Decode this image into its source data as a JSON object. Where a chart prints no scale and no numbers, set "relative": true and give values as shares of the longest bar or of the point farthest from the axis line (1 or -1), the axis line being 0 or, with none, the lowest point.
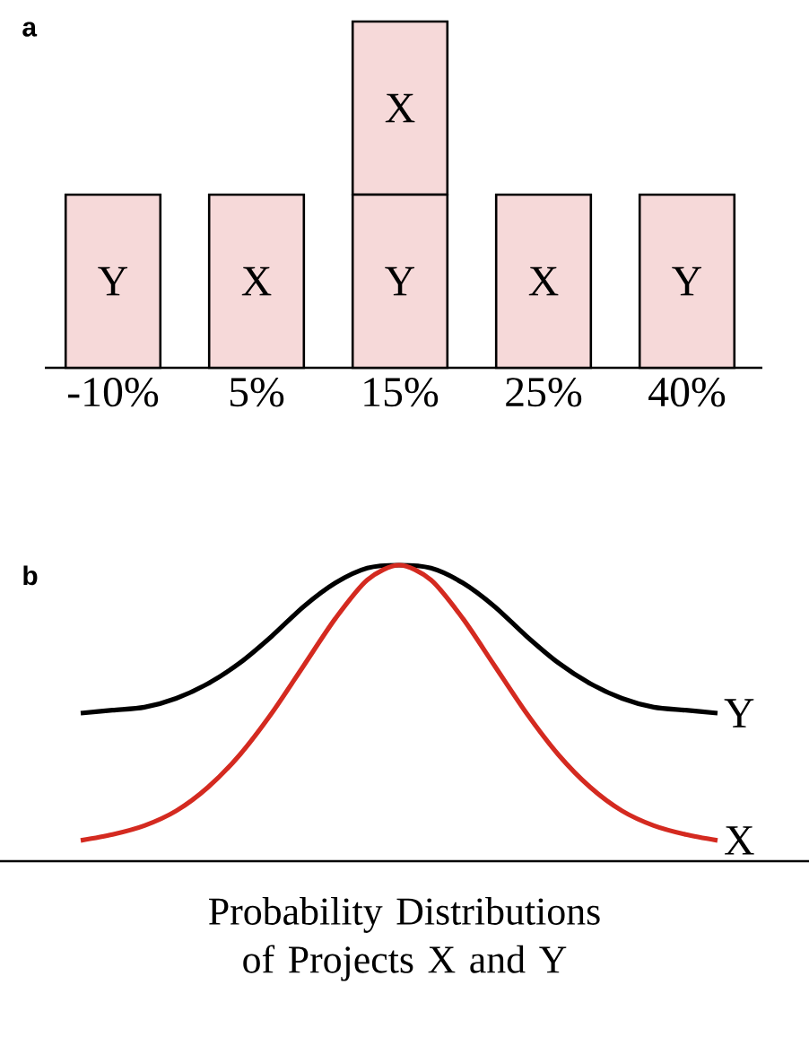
{
  "chart_data": [
    {
      "type": "bar",
      "title": "a",
      "categories": [
        "-10%",
        "5%",
        "15%",
        "25%",
        "40%"
      ],
      "stacked": true,
      "relative": true,
      "series": [
        {
          "name": "Y",
          "color": "#f6d9d9",
          "values": [
            0.5,
            0,
            0.5,
            0,
            0.5
          ]
        },
        {
          "name": "X",
          "color": "#f6d9d9",
          "values": [
            0,
            0.5,
            0.5,
            0.5,
            0
          ]
        }
      ]
    },
    {
      "type": "line",
      "title": "b",
      "relative": true,
      "categories": [
        null,
        null,
        null,
        null,
        null,
        null,
        null,
        null,
        null,
        null,
        null,
        null,
        null,
        null,
        null,
        null,
        null,
        null,
        null,
        null,
        null
      ],
      "annotations": [
        "Probability Distributions of Projects X and Y"
      ],
      "series": [
        {
          "name": "Y",
          "color": "#000000",
          "values": [
            0.5,
            0.51,
            0.52,
            0.55,
            0.6,
            0.67,
            0.76,
            0.86,
            0.94,
            0.99,
            1.0,
            0.99,
            0.94,
            0.86,
            0.76,
            0.67,
            0.6,
            0.55,
            0.52,
            0.51,
            0.5
          ]
        },
        {
          "name": "X",
          "color": "#d42a20",
          "values": [
            0.07,
            0.09,
            0.12,
            0.17,
            0.25,
            0.36,
            0.5,
            0.66,
            0.82,
            0.95,
            1.0,
            0.95,
            0.82,
            0.66,
            0.5,
            0.36,
            0.25,
            0.17,
            0.12,
            0.09,
            0.07
          ]
        }
      ]
    }
  ]
}
